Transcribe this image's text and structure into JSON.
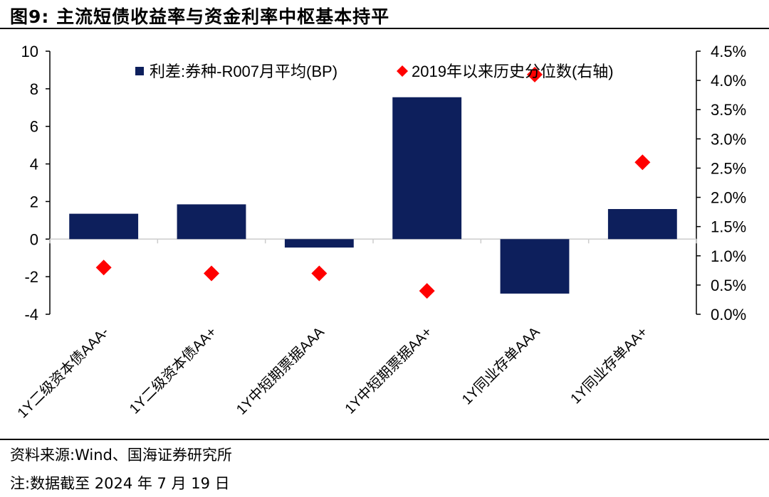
{
  "figure": {
    "title": "图9:  主流短债收益率与资金利率中枢基本持平",
    "source": "资料来源:Wind、国海证券研究所",
    "note": "注:数据截至 2024 年 7 月 19 日"
  },
  "chart_data": {
    "type": "bar",
    "categories": [
      "1Y二级资本债AAA-",
      "1Y二级资本债AA+",
      "1Y中短期票据AAA",
      "1Y中短期票据AA+",
      "1Y同业存单AAA",
      "1Y同业存单AA+"
    ],
    "series": [
      {
        "name": "利差:券种-R007月平均(BP)",
        "type": "bar",
        "axis": "left",
        "color": "#0d1f5c",
        "values": [
          1.35,
          1.85,
          -0.45,
          7.55,
          -2.9,
          1.6
        ]
      },
      {
        "name": "2019年以来历史分位数(右轴)",
        "type": "scatter",
        "marker": "diamond",
        "axis": "right",
        "color": "#ff0000",
        "values": [
          0.8,
          0.7,
          0.7,
          0.4,
          4.1,
          2.6
        ]
      }
    ],
    "ylim_left": [
      -4,
      10
    ],
    "yticks_left": [
      "10",
      "8",
      "6",
      "4",
      "2",
      "0",
      "-2",
      "-4"
    ],
    "ylim_right": [
      0,
      4.5
    ],
    "yticks_right": [
      "4.5%",
      "4.0%",
      "3.5%",
      "3.0%",
      "2.5%",
      "2.0%",
      "1.5%",
      "1.0%",
      "0.5%",
      "0.0%"
    ],
    "legend_position": "top",
    "grid": false
  }
}
